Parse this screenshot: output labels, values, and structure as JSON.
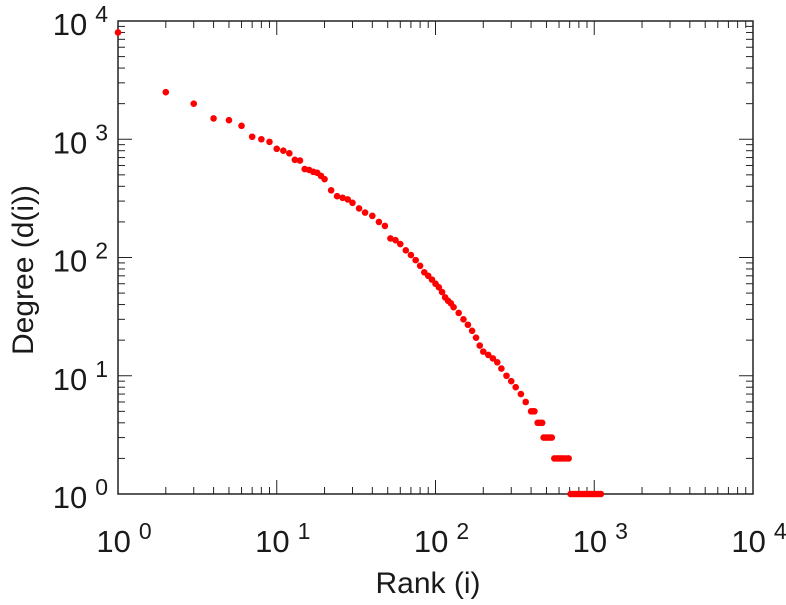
{
  "chart_data": {
    "type": "scatter",
    "title": "",
    "xlabel": "Rank (i)",
    "ylabel": "Degree (d(i))",
    "xscale": "log",
    "yscale": "log",
    "xlim": [
      1,
      10000
    ],
    "ylim": [
      1,
      10000
    ],
    "grid": false,
    "legend": "none",
    "marker_color": "#ff0000",
    "x_ticks": [
      {
        "base": "10",
        "exp": "0"
      },
      {
        "base": "10",
        "exp": "1"
      },
      {
        "base": "10",
        "exp": "2"
      },
      {
        "base": "10",
        "exp": "3"
      },
      {
        "base": "10",
        "exp": "4"
      }
    ],
    "y_ticks": [
      {
        "base": "10",
        "exp": "0"
      },
      {
        "base": "10",
        "exp": "1"
      },
      {
        "base": "10",
        "exp": "2"
      },
      {
        "base": "10",
        "exp": "3"
      },
      {
        "base": "10",
        "exp": "4"
      }
    ],
    "series": [
      {
        "points": [
          [
            1,
            8000
          ],
          [
            2,
            2500
          ],
          [
            3,
            2000
          ],
          [
            4,
            1500
          ],
          [
            5,
            1450
          ],
          [
            6,
            1300
          ],
          [
            7,
            1050
          ],
          [
            8,
            1000
          ],
          [
            9,
            950
          ],
          [
            10,
            830
          ],
          [
            11,
            800
          ],
          [
            12,
            760
          ],
          [
            13,
            670
          ],
          [
            14,
            660
          ],
          [
            15,
            560
          ],
          [
            16,
            550
          ],
          [
            17,
            530
          ],
          [
            18,
            520
          ],
          [
            19,
            490
          ],
          [
            20,
            460
          ],
          [
            22,
            370
          ],
          [
            24,
            330
          ],
          [
            26,
            320
          ],
          [
            28,
            310
          ],
          [
            30,
            290
          ],
          [
            33,
            260
          ],
          [
            36,
            240
          ],
          [
            40,
            225
          ],
          [
            44,
            200
          ],
          [
            48,
            185
          ],
          [
            52,
            145
          ],
          [
            56,
            140
          ],
          [
            60,
            130
          ],
          [
            65,
            115
          ],
          [
            70,
            105
          ],
          [
            75,
            95
          ],
          [
            80,
            85
          ],
          [
            85,
            75
          ],
          [
            90,
            70
          ],
          [
            95,
            65
          ],
          [
            100,
            60
          ],
          [
            105,
            56
          ],
          [
            110,
            51
          ],
          [
            115,
            46
          ],
          [
            120,
            43
          ],
          [
            125,
            41
          ],
          [
            130,
            38
          ],
          [
            140,
            34
          ],
          [
            150,
            30
          ],
          [
            160,
            27
          ],
          [
            170,
            24
          ],
          [
            180,
            21
          ],
          [
            190,
            18
          ],
          [
            200,
            16
          ],
          [
            215,
            15
          ],
          [
            230,
            14
          ],
          [
            245,
            13
          ],
          [
            260,
            11.5
          ],
          [
            280,
            10
          ],
          [
            300,
            9
          ],
          [
            320,
            8
          ],
          [
            345,
            7
          ],
          [
            370,
            6
          ],
          [
            400,
            5
          ],
          [
            410,
            5
          ],
          [
            420,
            5
          ],
          [
            440,
            4
          ],
          [
            455,
            4
          ],
          [
            470,
            4
          ],
          [
            480,
            3
          ],
          [
            495,
            3
          ],
          [
            510,
            3
          ],
          [
            525,
            3
          ],
          [
            540,
            3
          ],
          [
            560,
            2
          ],
          [
            580,
            2
          ],
          [
            600,
            2
          ],
          [
            620,
            2
          ],
          [
            640,
            2
          ],
          [
            665,
            2
          ],
          [
            690,
            2
          ],
          [
            710,
            1
          ],
          [
            735,
            1
          ],
          [
            760,
            1
          ],
          [
            785,
            1
          ],
          [
            810,
            1
          ],
          [
            840,
            1
          ],
          [
            870,
            1
          ],
          [
            900,
            1
          ],
          [
            930,
            1
          ],
          [
            960,
            1
          ],
          [
            990,
            1
          ],
          [
            1020,
            1
          ],
          [
            1060,
            1
          ],
          [
            1100,
            1
          ]
        ]
      }
    ]
  }
}
